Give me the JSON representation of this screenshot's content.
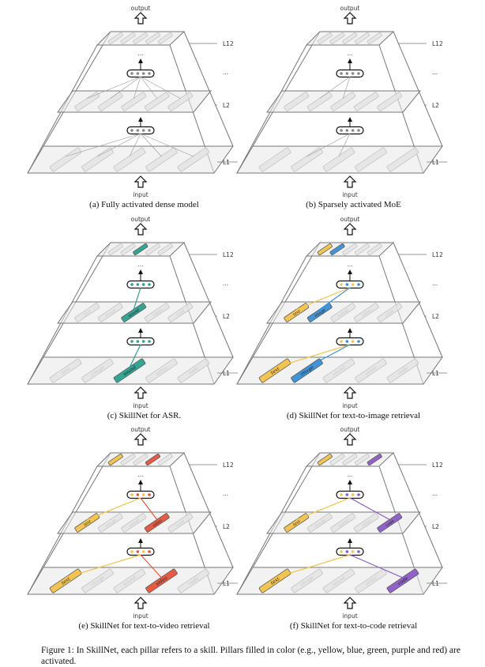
{
  "labels": {
    "output": "output",
    "input": "input",
    "l12": "L12",
    "l2": "L2",
    "l1": "L1",
    "dots": "..."
  },
  "skills": [
    "text",
    "image",
    "sound",
    "video",
    "code"
  ],
  "colors": {
    "gray": "#d0d0d0",
    "yellow": "#f5c24a",
    "blue": "#3a8fd6",
    "green": "#2aa18f",
    "red": "#e5553a",
    "purple": "#8c5cc6"
  },
  "panels": [
    {
      "id": "a",
      "caption": "(a) Fully activated dense model",
      "mode": "dense",
      "skill_text": false,
      "active": []
    },
    {
      "id": "b",
      "caption": "(b) Sparsely activated MoE",
      "mode": "moe",
      "skill_text": false,
      "active": []
    },
    {
      "id": "c",
      "caption": "(c) SkillNet for ASR.",
      "mode": "skill",
      "skill_text": true,
      "active": [
        "sound"
      ]
    },
    {
      "id": "d",
      "caption": "(d) SkillNet for text-to-image retrieval",
      "mode": "skill",
      "skill_text": true,
      "active": [
        "text",
        "image"
      ]
    },
    {
      "id": "e",
      "caption": "(e) SkillNet for text-to-video retrieval",
      "mode": "skill",
      "skill_text": true,
      "active": [
        "text",
        "video"
      ]
    },
    {
      "id": "f",
      "caption": "(f) SkillNet for text-to-code retrieval",
      "mode": "skill",
      "skill_text": true,
      "active": [
        "text",
        "code"
      ]
    }
  ],
  "figure_caption": "Figure 1:  In SkillNet, each pillar refers to a skill. Pillars filled in color (e.g., yellow, blue, green, purple and red) are activated."
}
